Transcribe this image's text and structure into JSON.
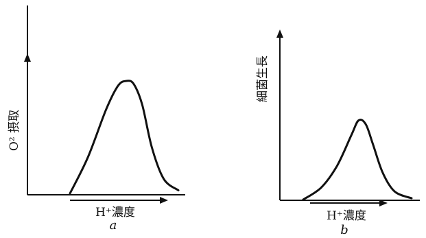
{
  "chart_data": [
    {
      "type": "line",
      "panel_label": "a",
      "xlabel": "H⁺濃度",
      "ylabel": "O² 摂取",
      "grid": false,
      "legend": "none",
      "xlim": [
        0,
        10
      ],
      "ylim": [
        0,
        10
      ],
      "series": [
        {
          "x": [
            0,
            1.5,
            3.0,
            4.0,
            4.7,
            5.3,
            6.0,
            6.8,
            7.8,
            9.0
          ],
          "y": [
            0.0,
            2.3,
            5.3,
            6.8,
            7.1,
            6.9,
            5.6,
            2.9,
            0.9,
            0.2
          ]
        }
      ]
    },
    {
      "type": "line",
      "panel_label": "b",
      "xlabel": "H⁺濃度",
      "ylabel": "細菌生長",
      "grid": false,
      "legend": "none",
      "xlim": [
        0,
        10
      ],
      "ylim": [
        0,
        10
      ],
      "series": [
        {
          "x": [
            0,
            1.5,
            2.8,
            4.0,
            4.6,
            5.2,
            5.8,
            6.6,
            7.6,
            9.0
          ],
          "y": [
            0.0,
            0.9,
            2.5,
            4.8,
            5.9,
            5.6,
            4.1,
            2.0,
            0.6,
            0.1
          ]
        }
      ]
    }
  ]
}
